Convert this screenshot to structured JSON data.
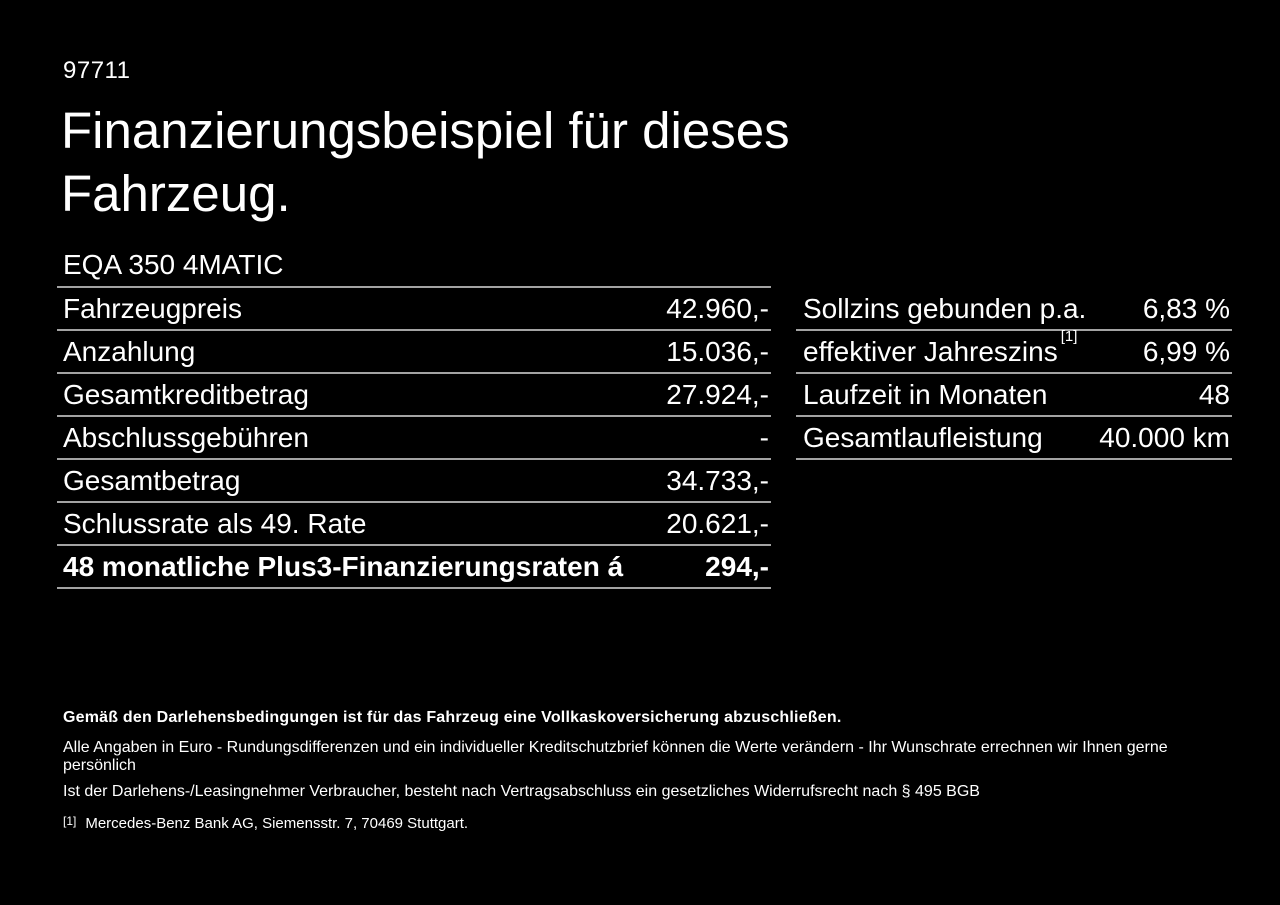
{
  "page": {
    "document_number": "97711",
    "title_line1": "Finanzierungsbeispiel für dieses",
    "title_line2": "Fahrzeug.",
    "vehicle_model": "EQA 350 4MATIC"
  },
  "left_table": {
    "rows": [
      {
        "label": "Fahrzeugpreis",
        "value": "42.960,-"
      },
      {
        "label": "Anzahlung",
        "value": "15.036,-"
      },
      {
        "label": "Gesamtkreditbetrag",
        "value": "27.924,-"
      },
      {
        "label": "Abschlussgebühren",
        "value": "-"
      },
      {
        "label": "Gesamtbetrag",
        "value": "34.733,-"
      },
      {
        "label": "Schlussrate als 49. Rate",
        "value": "20.621,-"
      },
      {
        "label": "48 monatliche Plus3-Finanzierungsraten á",
        "value": "294,-"
      }
    ]
  },
  "right_table": {
    "rows": [
      {
        "label": "Sollzins gebunden p.a.",
        "sup": "",
        "value": "6,83 %"
      },
      {
        "label": "effektiver Jahreszins",
        "sup": "[1]",
        "value": "6,99 %"
      },
      {
        "label": "Laufzeit in Monaten",
        "sup": "",
        "value": "48"
      },
      {
        "label": "Gesamtlaufleistung",
        "sup": "",
        "value": "40.000 km"
      }
    ]
  },
  "footer": {
    "line1": "Gemäß den Darlehensbedingungen ist für das Fahrzeug eine Vollkaskoversicherung abzuschließen.",
    "line2": "Alle Angaben in Euro - Rundungsdifferenzen und ein individueller Kreditschutzbrief können die Werte verändern - Ihr Wunschrate errechnen wir Ihnen gerne persönlich",
    "line3": "Ist der Darlehens-/Leasingnehmer Verbraucher, besteht nach Vertragsabschluss ein gesetzliches Widerrufsrecht nach § 495 BGB",
    "footnote_marker": "[1]",
    "footnote_text": "Mercedes-Benz Bank AG, Siemensstr. 7, 70469 Stuttgart."
  },
  "colors": {
    "background": "#000000",
    "text": "#ffffff",
    "divider": "#a3a3a3"
  }
}
